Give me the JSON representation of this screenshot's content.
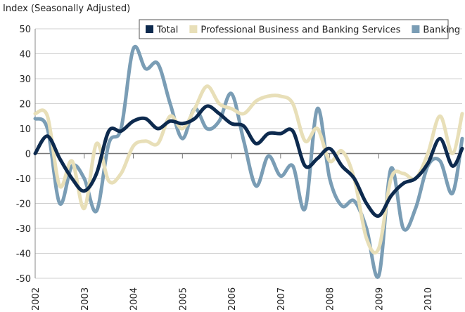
{
  "chart_data": {
    "type": "line",
    "y_label": "Index (Seasonally Adjusted)",
    "x": [
      2002,
      2002.25,
      2002.5,
      2002.75,
      2003,
      2003.25,
      2003.5,
      2003.75,
      2004,
      2004.25,
      2004.5,
      2004.75,
      2005,
      2005.25,
      2005.5,
      2005.75,
      2006,
      2006.25,
      2006.5,
      2006.75,
      2007,
      2007.25,
      2007.5,
      2007.75,
      2008,
      2008.25,
      2008.5,
      2008.75,
      2009,
      2009.25,
      2009.5,
      2009.75,
      2010,
      2010.25,
      2010.5,
      2010.7
    ],
    "series": [
      {
        "name": "Total",
        "color": "#0d2a4e",
        "values": [
          0,
          7,
          -2,
          -10,
          -15,
          -8,
          9,
          9,
          13,
          14,
          10,
          13,
          12,
          14,
          19,
          16,
          12,
          11,
          4,
          8,
          8,
          9,
          -5,
          -2,
          2,
          -5,
          -10,
          -20,
          -25,
          -17,
          -12,
          -10,
          -4,
          6,
          -5,
          2
        ]
      },
      {
        "name": "Professional Business and Banking Services",
        "color": "#e8dfb8",
        "values": [
          16,
          15,
          -13,
          -3,
          -22,
          4,
          -11,
          -8,
          3,
          5,
          4,
          15,
          10,
          18,
          27,
          20,
          18,
          16,
          21,
          23,
          23,
          20,
          5,
          10,
          -3,
          1,
          -10,
          -34,
          -38,
          -10,
          -8,
          -10,
          0,
          15,
          0,
          16
        ]
      },
      {
        "name": "Banking",
        "color": "#7a9db5",
        "values": [
          14,
          10,
          -20,
          -5,
          -10,
          -23,
          4,
          10,
          42,
          34,
          36,
          20,
          6,
          18,
          10,
          13,
          24,
          5,
          -13,
          -1,
          -9,
          -5,
          -22,
          18,
          -10,
          -21,
          -19,
          -30,
          -49,
          -6,
          -30,
          -22,
          -5,
          -3,
          -16,
          6
        ]
      }
    ],
    "xlim": [
      2002,
      2010.7
    ],
    "xticks": [
      2002,
      2003,
      2004,
      2005,
      2006,
      2007,
      2008,
      2009,
      2010
    ],
    "ylim": [
      -50,
      50
    ],
    "yticks": [
      -50,
      -40,
      -30,
      -20,
      -10,
      0,
      10,
      20,
      30,
      40,
      50
    ],
    "grid": true,
    "legend": "top"
  }
}
